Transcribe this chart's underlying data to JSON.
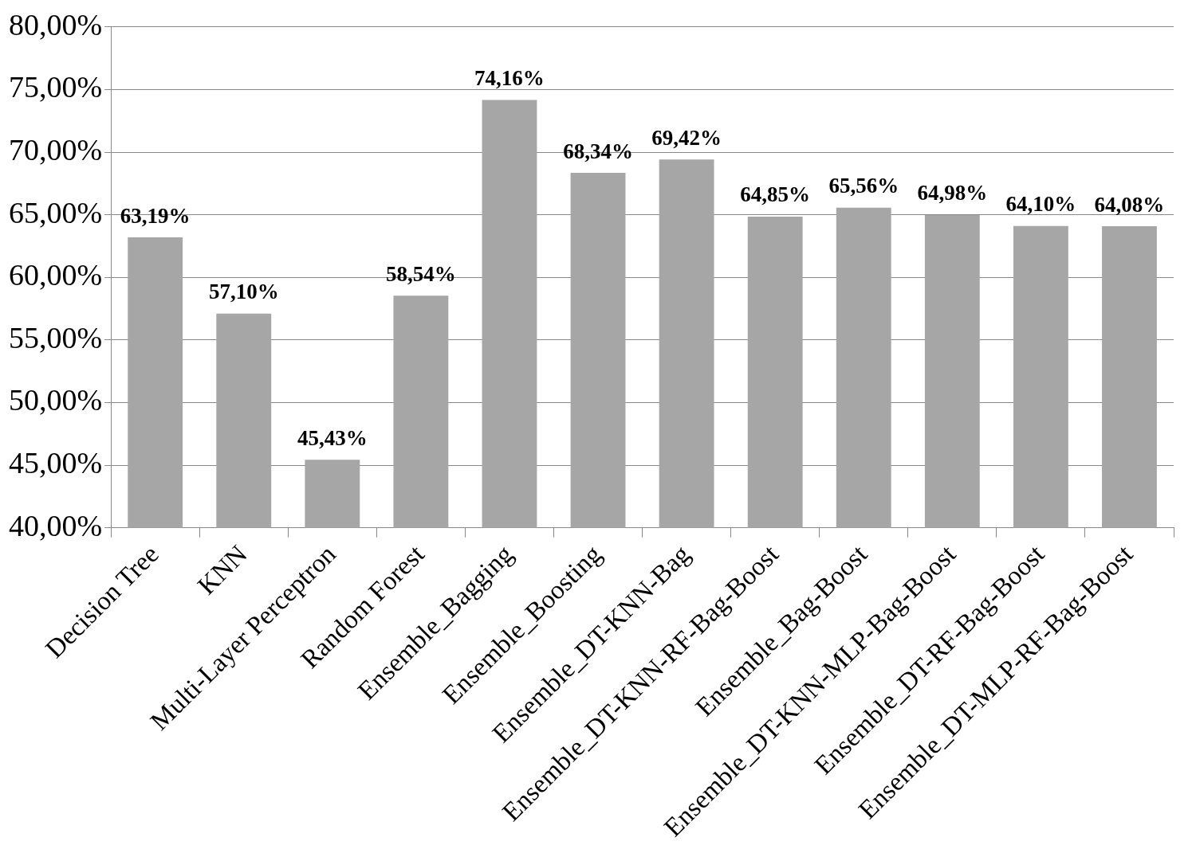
{
  "chart_data": {
    "type": "bar",
    "categories": [
      "Decision Tree",
      "KNN",
      "Multi-Layer Perceptron",
      "Random Forest",
      "Ensemble_Bagging",
      "Ensemble_Boosting",
      "Ensemble_DT-KNN-Bag",
      "Ensemble_DT-KNN-RF-Bag-Boost",
      "Ensemble_Bag-Boost",
      "Ensemble_DT-KNN-MLP-Bag-Boost",
      "Ensemble_DT-RF-Bag-Boost",
      "Ensemble_DT-MLP-RF-Bag-Boost"
    ],
    "values": [
      63.19,
      57.1,
      45.43,
      58.54,
      74.16,
      68.34,
      69.42,
      64.85,
      65.56,
      64.98,
      64.1,
      64.08
    ],
    "value_labels": [
      "63,19%",
      "57,10%",
      "45,43%",
      "58,54%",
      "74,16%",
      "68,34%",
      "69,42%",
      "64,85%",
      "65,56%",
      "64,98%",
      "64,10%",
      "64,08%"
    ],
    "color": "#a6a6a6",
    "ylim": [
      40,
      80
    ],
    "yticks": [
      {
        "value": 40,
        "label": "40,00%"
      },
      {
        "value": 45,
        "label": "45,00%"
      },
      {
        "value": 50,
        "label": "50,00%"
      },
      {
        "value": 55,
        "label": "55,00%"
      },
      {
        "value": 60,
        "label": "60,00%"
      },
      {
        "value": 65,
        "label": "65,00%"
      },
      {
        "value": 70,
        "label": "70,00%"
      },
      {
        "value": 75,
        "label": "75,00%"
      },
      {
        "value": 80,
        "label": "80,00%"
      }
    ],
    "grid": "y"
  }
}
